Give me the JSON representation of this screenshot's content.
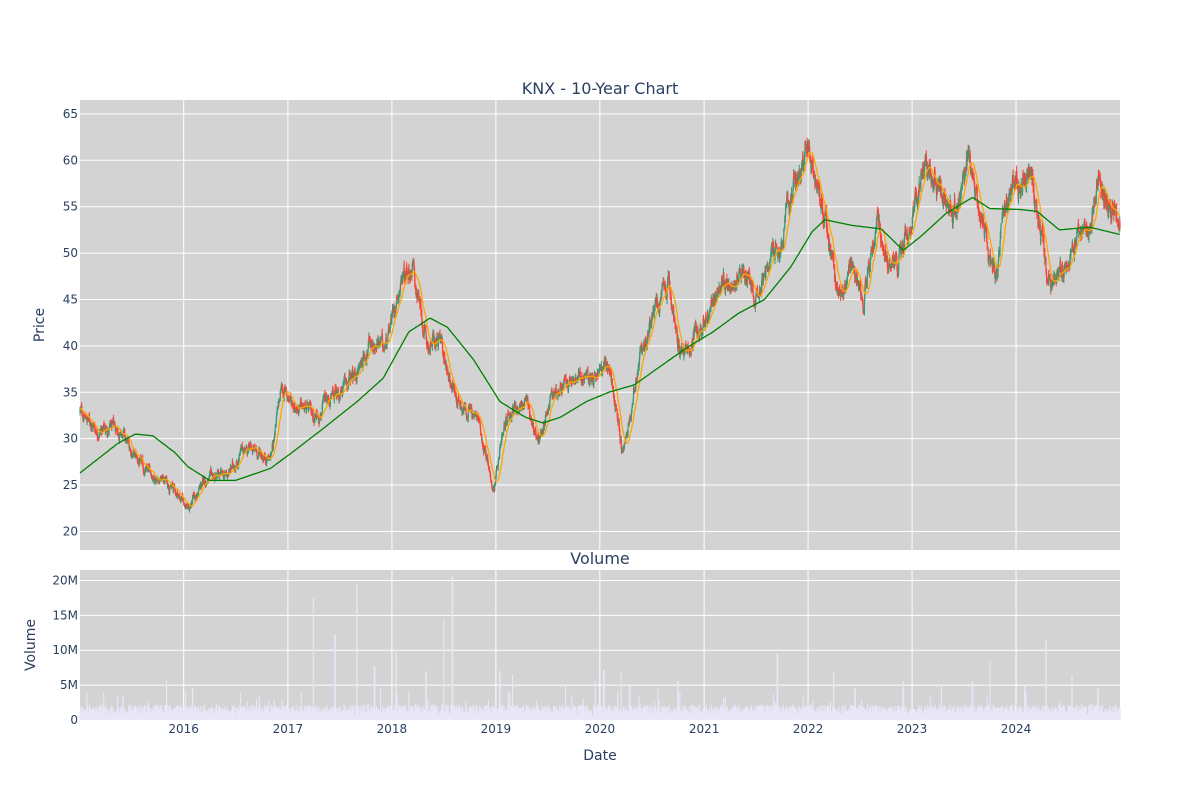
{
  "chart_data": [
    {
      "type": "candlestick",
      "title": "KNX - 10-Year Chart",
      "ylabel": "Price",
      "ylim": [
        18,
        66.5
      ],
      "xlim": [
        "2015-01-02",
        "2024-12-31"
      ],
      "yticks": [
        20,
        25,
        30,
        35,
        40,
        45,
        50,
        55,
        60,
        65
      ],
      "xticks": [
        "2016",
        "2017",
        "2018",
        "2019",
        "2020",
        "2021",
        "2022",
        "2023",
        "2024"
      ],
      "grid": true,
      "colors": {
        "up": "#3d9970",
        "down": "#ff4136",
        "ma_short": "#ffa500",
        "ma_long": "#008000",
        "plot_bg": "#d3d3d3"
      },
      "price_keypoints": [
        [
          "2015-01-02",
          33
        ],
        [
          "2015-03-01",
          31
        ],
        [
          "2015-05-15",
          31
        ],
        [
          "2015-08-15",
          26.5
        ],
        [
          "2015-11-01",
          25.5
        ],
        [
          "2016-01-20",
          22.5
        ],
        [
          "2016-03-15",
          25.5
        ],
        [
          "2016-06-01",
          26
        ],
        [
          "2016-08-01",
          29
        ],
        [
          "2016-11-01",
          28
        ],
        [
          "2016-12-10",
          35.5
        ],
        [
          "2017-01-15",
          34
        ],
        [
          "2017-04-01",
          32.5
        ],
        [
          "2017-06-15",
          34.5
        ],
        [
          "2017-09-01",
          37
        ],
        [
          "2017-10-15",
          40.5
        ],
        [
          "2017-12-01",
          40
        ],
        [
          "2018-02-15",
          48.5
        ],
        [
          "2018-03-15",
          48.5
        ],
        [
          "2018-05-01",
          40
        ],
        [
          "2018-06-15",
          40.5
        ],
        [
          "2018-08-15",
          34.5
        ],
        [
          "2018-11-01",
          32
        ],
        [
          "2018-12-24",
          24.5
        ],
        [
          "2019-02-15",
          33
        ],
        [
          "2019-04-15",
          34
        ],
        [
          "2019-06-01",
          29.5
        ],
        [
          "2019-07-15",
          35
        ],
        [
          "2019-10-01",
          36
        ],
        [
          "2019-12-15",
          37
        ],
        [
          "2020-02-01",
          38
        ],
        [
          "2020-03-20",
          28.5
        ],
        [
          "2020-05-15",
          38
        ],
        [
          "2020-07-15",
          44
        ],
        [
          "2020-09-01",
          46
        ],
        [
          "2020-10-15",
          39
        ],
        [
          "2020-12-15",
          42
        ],
        [
          "2021-03-01",
          46
        ],
        [
          "2021-05-01",
          48.5
        ],
        [
          "2021-07-01",
          46
        ],
        [
          "2021-10-01",
          51
        ],
        [
          "2021-11-15",
          58
        ],
        [
          "2022-01-01",
          60.5
        ],
        [
          "2022-03-01",
          54
        ],
        [
          "2022-04-15",
          45.5
        ],
        [
          "2022-06-01",
          47.5
        ],
        [
          "2022-07-15",
          45.5
        ],
        [
          "2022-09-01",
          54
        ],
        [
          "2022-10-15",
          48
        ],
        [
          "2022-12-01",
          50
        ],
        [
          "2023-01-15",
          56
        ],
        [
          "2023-02-15",
          61
        ],
        [
          "2023-04-15",
          56
        ],
        [
          "2023-06-01",
          55
        ],
        [
          "2023-07-15",
          59.5
        ],
        [
          "2023-09-15",
          52
        ],
        [
          "2023-10-20",
          48
        ],
        [
          "2023-12-15",
          57.5
        ],
        [
          "2024-02-15",
          58.5
        ],
        [
          "2024-04-01",
          52
        ],
        [
          "2024-04-20",
          47.5
        ],
        [
          "2024-06-15",
          48
        ],
        [
          "2024-08-01",
          52
        ],
        [
          "2024-09-15",
          53
        ],
        [
          "2024-10-15",
          59
        ],
        [
          "2024-11-15",
          56
        ],
        [
          "2024-12-31",
          53
        ]
      ],
      "ma_long_keypoints": [
        [
          "2015-01-02",
          26.3
        ],
        [
          "2015-05-15",
          29.5
        ],
        [
          "2015-07-15",
          30.5
        ],
        [
          "2015-09-15",
          30.3
        ],
        [
          "2015-12-01",
          28.5
        ],
        [
          "2016-01-15",
          27
        ],
        [
          "2016-04-01",
          25.5
        ],
        [
          "2016-07-01",
          25.5
        ],
        [
          "2016-11-01",
          26.8
        ],
        [
          "2017-01-15",
          28.5
        ],
        [
          "2017-05-01",
          31
        ],
        [
          "2017-09-01",
          34
        ],
        [
          "2017-12-01",
          36.5
        ],
        [
          "2018-03-01",
          41.5
        ],
        [
          "2018-05-15",
          43
        ],
        [
          "2018-07-15",
          42
        ],
        [
          "2018-10-15",
          38.5
        ],
        [
          "2019-01-15",
          34
        ],
        [
          "2019-04-15",
          32.3
        ],
        [
          "2019-06-15",
          31.7
        ],
        [
          "2019-08-15",
          32.3
        ],
        [
          "2019-11-15",
          34
        ],
        [
          "2020-02-01",
          35
        ],
        [
          "2020-05-01",
          35.8
        ],
        [
          "2020-08-01",
          37.8
        ],
        [
          "2020-11-01",
          39.8
        ],
        [
          "2021-02-01",
          41.5
        ],
        [
          "2021-05-01",
          43.5
        ],
        [
          "2021-08-01",
          45
        ],
        [
          "2021-11-01",
          48.5
        ],
        [
          "2022-01-15",
          52.3
        ],
        [
          "2022-03-01",
          53.6
        ],
        [
          "2022-06-01",
          53
        ],
        [
          "2022-09-15",
          52.6
        ],
        [
          "2022-12-01",
          50.3
        ],
        [
          "2023-02-01",
          51.8
        ],
        [
          "2023-05-01",
          54.3
        ],
        [
          "2023-08-01",
          56
        ],
        [
          "2023-10-01",
          54.8
        ],
        [
          "2024-01-15",
          54.7
        ],
        [
          "2024-03-15",
          54.5
        ],
        [
          "2024-06-01",
          52.5
        ],
        [
          "2024-09-15",
          52.8
        ],
        [
          "2024-12-31",
          52
        ]
      ]
    },
    {
      "type": "bar",
      "title": "Volume",
      "xlabel": "Date",
      "ylabel": "Volume",
      "ylim": [
        0,
        21500000
      ],
      "yticks": [
        0,
        5000000,
        10000000,
        15000000,
        20000000
      ],
      "ytick_labels": [
        "0",
        "5M",
        "10M",
        "15M",
        "20M"
      ],
      "colors": {
        "bar": "#e8e6f8"
      },
      "volume_spikes": [
        [
          "2015-06-01",
          3500000
        ],
        [
          "2015-11-01",
          5800000
        ],
        [
          "2016-02-01",
          4600000
        ],
        [
          "2017-04-01",
          17500000
        ],
        [
          "2017-06-15",
          12200000
        ],
        [
          "2017-09-01",
          19500000
        ],
        [
          "2017-11-01",
          7700000
        ],
        [
          "2018-01-15",
          9800000
        ],
        [
          "2018-05-01",
          7000000
        ],
        [
          "2018-07-01",
          14500000
        ],
        [
          "2018-08-01",
          20500000
        ],
        [
          "2019-01-15",
          7000000
        ],
        [
          "2019-03-01",
          6500000
        ],
        [
          "2019-09-01",
          5000000
        ],
        [
          "2019-12-15",
          5500000
        ],
        [
          "2020-01-15",
          7200000
        ],
        [
          "2020-03-15",
          6800000
        ],
        [
          "2020-04-15",
          5000000
        ],
        [
          "2020-10-01",
          5500000
        ],
        [
          "2021-09-15",
          9500000
        ],
        [
          "2022-04-01",
          7000000
        ],
        [
          "2022-06-15",
          4500000
        ],
        [
          "2022-12-01",
          5500000
        ],
        [
          "2023-04-15",
          5000000
        ],
        [
          "2023-08-01",
          5500000
        ],
        [
          "2023-10-01",
          8500000
        ],
        [
          "2024-02-01",
          5000000
        ],
        [
          "2024-04-15",
          11500000
        ],
        [
          "2024-07-15",
          6500000
        ],
        [
          "2024-10-15",
          4500000
        ]
      ]
    }
  ]
}
